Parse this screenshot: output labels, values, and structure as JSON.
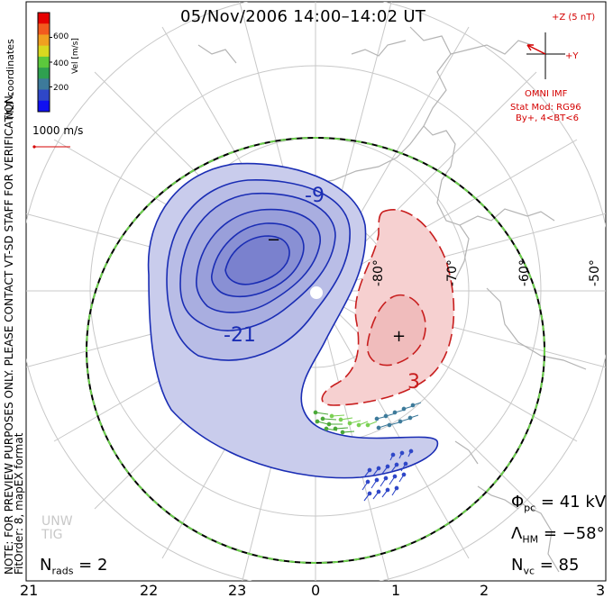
{
  "title": "05/Nov/2006 14:00–14:02 UT",
  "coordinates": "MLT coordinates",
  "note": "NOTE: FOR PREVIEW PURPOSES ONLY. PLEASE CONTACT VT-SD STAFF FOR VERIFICATION.",
  "fit_order": "FitOrder: 8, mapEX format",
  "colorbar": {
    "label": "Vel [m/s]",
    "ticks": [
      "600",
      "400",
      "200"
    ],
    "colors": [
      "#e60000",
      "#f25a1e",
      "#f0a020",
      "#d8d820",
      "#5cc83c",
      "#2fa050",
      "#3d7a9a",
      "#2f47c8",
      "#1010f0"
    ]
  },
  "vector_scale": "1000 m/s",
  "imf": {
    "z_label": "+Z (5 nT)",
    "y_label": "+Y",
    "source": "OMNI IMF",
    "model": "Stat Mod: RG96",
    "condition": "By+, 4<BT<6"
  },
  "latitude_labels": [
    "-80°",
    "-70°",
    "-60°",
    "-50°"
  ],
  "contour_labels": [
    "-9",
    "-21",
    "3",
    "−",
    "+"
  ],
  "mlt_labels": [
    "21",
    "22",
    "23",
    "0",
    "1",
    "2",
    "3"
  ],
  "stats": {
    "phi_pc_symbol": "Φ",
    "phi_pc_sub": "pc",
    "phi_pc_value": " = 41 kV",
    "lambda_hm_symbol": "Λ",
    "lambda_hm_sub": "HM",
    "lambda_hm_value": " = −58°",
    "n_vc_symbol": "N",
    "n_vc_sub": "vc",
    "n_vc_value": " = 85",
    "n_rads_symbol": "N",
    "n_rads_sub": "rads",
    "n_rads_value": " = 2"
  },
  "logo": {
    "line1": "UNW",
    "line2": "TIG"
  },
  "colors": {
    "negative_contour": "#1a2db4",
    "positive_contour": "#c81e1e",
    "negative_fill": "#c9ccec",
    "positive_fill": "#f6d0d0",
    "coastline": "#b4b4b4",
    "grid": "#c8c8c8",
    "boundary_green": "#6cd04c"
  }
}
